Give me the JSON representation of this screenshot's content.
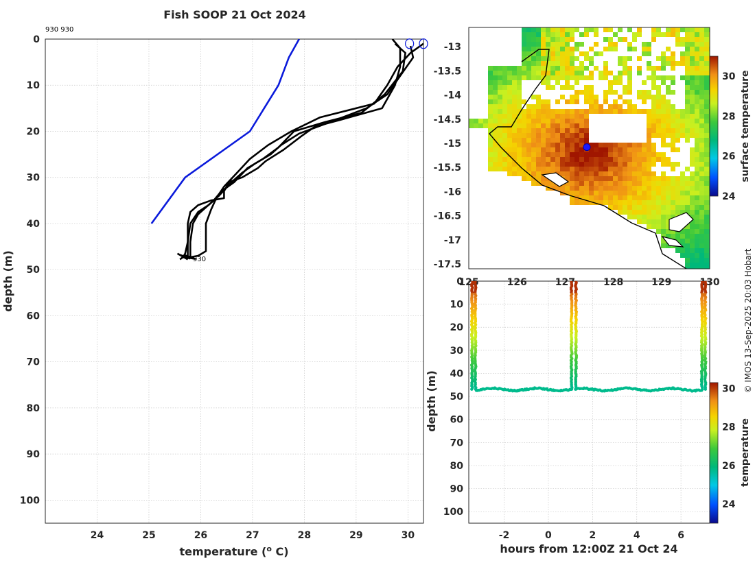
{
  "title": "Fish SOOP 21 Oct 2024",
  "profile_tag": "930 930",
  "end_tag": "930",
  "copyright": "© IMOS 13-Sep-2025 20:03 Hobart",
  "colors": {
    "black": "#000000",
    "blue": "#0a1adb",
    "grid": "#c8c8c8"
  },
  "chart_data": [
    {
      "type": "line",
      "name": "temperature-profile",
      "title": "Fish SOOP 21 Oct 2024",
      "xlabel": "temperature (o C)",
      "ylabel": "depth (m)",
      "xlim": [
        23,
        30.3
      ],
      "ylim": [
        105,
        0
      ],
      "xticks": [
        24,
        25,
        26,
        27,
        28,
        29,
        30
      ],
      "yticks": [
        0,
        10,
        20,
        30,
        40,
        50,
        60,
        70,
        80,
        90,
        100
      ],
      "series": [
        {
          "name": "climatology",
          "color": "#0a1adb",
          "points": [
            [
              27.9,
              0
            ],
            [
              27.7,
              4
            ],
            [
              27.5,
              10
            ],
            [
              26.95,
              20
            ],
            [
              25.7,
              30
            ],
            [
              25.05,
              40
            ]
          ]
        },
        {
          "name": "cast1",
          "color": "#000000",
          "points": [
            [
              29.7,
              0
            ],
            [
              29.85,
              2
            ],
            [
              29.85,
              6
            ],
            [
              29.75,
              10
            ],
            [
              29.5,
              15
            ],
            [
              28.7,
              17.5
            ],
            [
              28.2,
              19
            ],
            [
              27.95,
              21
            ],
            [
              27.6,
              24
            ],
            [
              27.25,
              26.5
            ],
            [
              27.1,
              28
            ],
            [
              26.8,
              30
            ],
            [
              26.55,
              31
            ],
            [
              26.45,
              33
            ],
            [
              26.45,
              34.5
            ],
            [
              26.2,
              35
            ],
            [
              25.95,
              36
            ],
            [
              25.8,
              37.5
            ],
            [
              25.75,
              40
            ],
            [
              25.75,
              44
            ],
            [
              25.7,
              46.5
            ],
            [
              25.65,
              47.5
            ]
          ]
        },
        {
          "name": "cast2",
          "color": "#000000",
          "points": [
            [
              29.75,
              1
            ],
            [
              29.95,
              3
            ],
            [
              29.9,
              7
            ],
            [
              29.55,
              12
            ],
            [
              29.1,
              16
            ],
            [
              28.4,
              18
            ],
            [
              27.8,
              20
            ],
            [
              27.5,
              23.5
            ],
            [
              27.2,
              26
            ],
            [
              26.9,
              28
            ],
            [
              26.65,
              31
            ],
            [
              26.4,
              33
            ],
            [
              26.25,
              35
            ],
            [
              25.95,
              38
            ],
            [
              25.85,
              40
            ],
            [
              25.8,
              44
            ],
            [
              25.8,
              47.5
            ]
          ]
        },
        {
          "name": "cast3",
          "color": "#000000",
          "points": [
            [
              30.05,
              1.5
            ],
            [
              30.1,
              4
            ],
            [
              29.85,
              8
            ],
            [
              29.6,
              12
            ],
            [
              29.2,
              15
            ],
            [
              28.5,
              18
            ],
            [
              27.9,
              20.5
            ],
            [
              27.55,
              23
            ],
            [
              27.35,
              25
            ],
            [
              27.05,
              27
            ],
            [
              26.8,
              29
            ],
            [
              26.6,
              31
            ],
            [
              26.35,
              34
            ],
            [
              26.15,
              36
            ],
            [
              25.95,
              37.5
            ],
            [
              25.8,
              40
            ],
            [
              25.75,
              44
            ],
            [
              25.75,
              47
            ]
          ]
        },
        {
          "name": "cast4",
          "color": "#000000",
          "points": [
            [
              30.3,
              1
            ],
            [
              30.05,
              3
            ],
            [
              29.8,
              6
            ],
            [
              29.6,
              10
            ],
            [
              29.35,
              14
            ],
            [
              28.3,
              17
            ],
            [
              27.75,
              20
            ],
            [
              27.3,
              23
            ],
            [
              26.95,
              26
            ],
            [
              26.7,
              29
            ],
            [
              26.45,
              32
            ],
            [
              26.3,
              34.5
            ],
            [
              26.2,
              37
            ],
            [
              26.1,
              40
            ],
            [
              26.1,
              43
            ],
            [
              26.1,
              46
            ],
            [
              25.95,
              47
            ],
            [
              25.7,
              47.5
            ]
          ]
        }
      ],
      "markers": [
        {
          "temp": 30.03,
          "depth": 1,
          "color": "#0a1adb"
        },
        {
          "temp": 30.3,
          "depth": 1,
          "color": "#0a1adb"
        }
      ]
    },
    {
      "type": "heatmap",
      "name": "sst-map",
      "xlabel": "",
      "ylabel": "",
      "xlim": [
        125,
        130.0
      ],
      "ylim": [
        -17.6,
        -12.6
      ],
      "xticks": [
        125,
        126,
        127,
        128,
        129,
        130
      ],
      "xtick_labels": [
        "125",
        "126",
        "127",
        "128",
        "129",
        "130"
      ],
      "yticks": [
        -13,
        -13.5,
        -14,
        -14.5,
        -15,
        -15.5,
        -16,
        -16.5,
        -17,
        -17.5
      ],
      "ytick_labels": [
        "-13",
        "-13.5",
        "-14",
        "-14.5",
        "-15",
        "-15.5",
        "-16",
        "-16.5",
        "-17",
        "-17.5"
      ],
      "colorbar": {
        "label": "surface temperature",
        "range": [
          24,
          31
        ],
        "ticks": [
          24,
          26,
          28,
          30
        ]
      },
      "vessel_position": {
        "lon": 127.45,
        "lat": -15.08
      },
      "hot_core": {
        "lon": 127.5,
        "lat": -15.2,
        "value": 31.2
      },
      "coast_value_range": [
        29.0,
        31.2
      ],
      "offshore_value_range": [
        26.5,
        29.5
      ]
    },
    {
      "type": "scatter",
      "name": "depth-time",
      "xlabel": "hours from 12:00Z 21 Oct 24",
      "ylabel": "depth (m)",
      "xlim": [
        -3.6,
        7.3
      ],
      "ylim": [
        105,
        0
      ],
      "xticks": [
        -2,
        0,
        2,
        4,
        6
      ],
      "yticks": [
        0,
        10,
        20,
        30,
        40,
        50,
        60,
        70,
        80,
        90,
        100
      ],
      "colorbar": {
        "label": "temperature",
        "range": [
          23,
          30.3
        ],
        "ticks": [
          24,
          26,
          28,
          30
        ]
      },
      "casts": [
        {
          "start": -3.45,
          "end": -3.3
        },
        {
          "start": 1.05,
          "end": 1.25
        },
        {
          "start": 6.95,
          "end": 7.1
        }
      ],
      "bottom_depth": 47,
      "bottom_temperature": 25.75
    }
  ]
}
